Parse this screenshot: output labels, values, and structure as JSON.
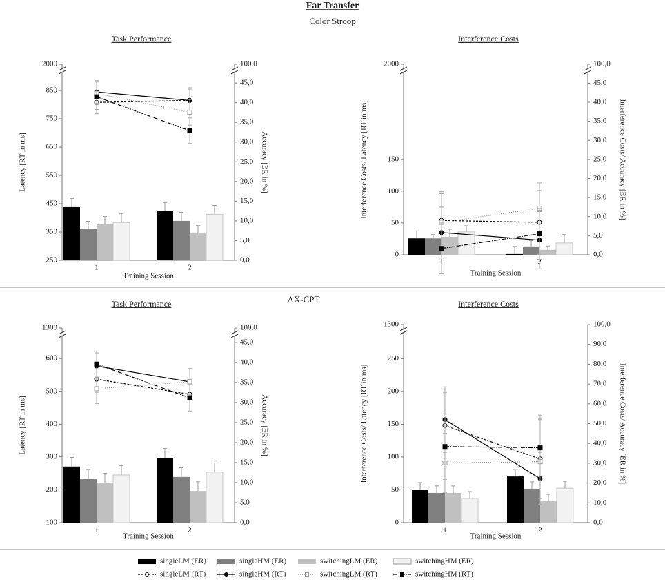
{
  "title": "Far Transfer",
  "sections": [
    "Color Stroop",
    "AX-CPT"
  ],
  "chart_data": [
    {
      "type": "bar_line",
      "title": "Task Performance",
      "xlabel": "Training Session",
      "ylabel": "Latency  [RT in ms]",
      "y2label": "Accuracy [ER in %]",
      "categories": [
        "1",
        "2"
      ],
      "ylim": [
        250,
        899
      ],
      "yticks": [
        250,
        350,
        450,
        550,
        650,
        750,
        850
      ],
      "ybreak_tick": 2000,
      "y2lim": [
        0,
        46.6
      ],
      "y2ticks": [
        {
          "value": 0,
          "label": "0,0"
        },
        {
          "value": 5,
          "label": "5,0"
        },
        {
          "value": 10,
          "label": "10,0"
        },
        {
          "value": 15,
          "label": "15,0"
        },
        {
          "value": 20,
          "label": "20,0"
        },
        {
          "value": 25,
          "label": "25,0"
        },
        {
          "value": 30,
          "label": "30,0"
        },
        {
          "value": 35,
          "label": "35,0"
        },
        {
          "value": 40,
          "label": "40,0"
        },
        {
          "value": 45,
          "label": "45,0"
        }
      ],
      "y2break_tick": {
        "value": 100,
        "label": "100,0"
      },
      "series": [
        {
          "name": "singleLM (ER)",
          "type": "bar",
          "axis": "y2",
          "color": "#000000",
          "values": [
            13.5,
            12.6
          ],
          "errors": [
            2.2,
            2.0
          ]
        },
        {
          "name": "singleHM (ER)",
          "type": "bar",
          "axis": "y2",
          "color": "#808080",
          "values": [
            7.9,
            10.0
          ],
          "errors": [
            2.0,
            2.2
          ]
        },
        {
          "name": "switchingLM (ER)",
          "type": "bar",
          "axis": "y2",
          "color": "#c0c0c0",
          "values": [
            9.1,
            6.8
          ],
          "errors": [
            2.0,
            2.0
          ]
        },
        {
          "name": "switchingHM (ER)",
          "type": "bar",
          "axis": "y2",
          "color": "#f2f2f2",
          "values": [
            9.6,
            11.7
          ],
          "errors": [
            2.2,
            2.2
          ]
        },
        {
          "name": "singleLM (RT)",
          "type": "line",
          "axis": "y",
          "color": "#000000",
          "dash": "3,2",
          "marker": "circle",
          "marker_fill": "#ffffff",
          "values": [
            808,
            815
          ],
          "errors": [
            40,
            40
          ]
        },
        {
          "name": "singleHM (RT)",
          "type": "line",
          "axis": "y",
          "color": "#000000",
          "dash": "none",
          "marker": "circle",
          "marker_fill": "#000000",
          "values": [
            845,
            815
          ],
          "errors": [
            40,
            45
          ]
        },
        {
          "name": "switchingLM (RT)",
          "type": "line",
          "axis": "y",
          "color": "#999999",
          "dash": "1,2",
          "marker": "square",
          "marker_fill": "#ffffff",
          "values": [
            840,
            773
          ],
          "errors": [
            40,
            45
          ]
        },
        {
          "name": "switchingHM (RT)",
          "type": "line",
          "axis": "y",
          "color": "#000000",
          "dash": "6,2,1,2",
          "marker": "square",
          "marker_fill": "#000000",
          "values": [
            828,
            708
          ],
          "errors": [
            45,
            45
          ]
        }
      ]
    },
    {
      "type": "bar_line",
      "title": "Interference Costs",
      "xlabel": "Training Session",
      "ylabel": "Interference Costs/ Latency  [RT in ms]",
      "y2label": "Interference Costs/ Accuracy [ER in %]",
      "categories": [
        "1",
        "2"
      ],
      "ylim": [
        0,
        280
      ],
      "yticks": [
        0,
        50,
        100,
        150
      ],
      "ybreak_tick": 2000,
      "y2lim": [
        0,
        46.7
      ],
      "y2ticks": [
        {
          "value": 0,
          "label": "0,0"
        },
        {
          "value": 5,
          "label": "5,0"
        },
        {
          "value": 10,
          "label": "10,0"
        },
        {
          "value": 15,
          "label": "15,0"
        },
        {
          "value": 20,
          "label": "20,0"
        },
        {
          "value": 25,
          "label": "25,0"
        },
        {
          "value": 30,
          "label": "30,0"
        },
        {
          "value": 35,
          "label": "35,0"
        },
        {
          "value": 40,
          "label": "40,0"
        },
        {
          "value": 45,
          "label": "45,0"
        }
      ],
      "y2break_tick": {
        "value": 100,
        "label": "100,0"
      },
      "series": [
        {
          "name": "singleLM (ER)",
          "type": "bar",
          "axis": "y2",
          "color": "#000000",
          "values": [
            4.3,
            0.2
          ],
          "errors": [
            2.0,
            2.0
          ]
        },
        {
          "name": "singleHM (ER)",
          "type": "bar",
          "axis": "y2",
          "color": "#808080",
          "values": [
            4.3,
            2.2
          ],
          "errors": [
            1.0,
            1.5
          ]
        },
        {
          "name": "switchingLM (ER)",
          "type": "bar",
          "axis": "y2",
          "color": "#c0c0c0",
          "values": [
            4.7,
            1.3
          ],
          "errors": [
            2.0,
            1.0
          ]
        },
        {
          "name": "switchingHM (ER)",
          "type": "bar",
          "axis": "y2",
          "color": "#f2f2f2",
          "values": [
            6.0,
            3.1
          ],
          "errors": [
            1.6,
            2.2
          ]
        },
        {
          "name": "singleLM (RT)",
          "type": "line",
          "axis": "y",
          "color": "#000000",
          "dash": "3,2",
          "marker": "circle",
          "marker_fill": "#ffffff",
          "values": [
            54,
            51
          ],
          "errors": [
            45,
            50
          ]
        },
        {
          "name": "singleHM (RT)",
          "type": "line",
          "axis": "y",
          "color": "#000000",
          "dash": "none",
          "marker": "circle",
          "marker_fill": "#000000",
          "values": [
            35,
            23
          ],
          "errors": [
            40,
            45
          ]
        },
        {
          "name": "switchingLM (RT)",
          "type": "line",
          "axis": "y",
          "color": "#999999",
          "dash": "1,2",
          "marker": "square",
          "marker_fill": "#ffffff",
          "values": [
            51,
            73
          ],
          "errors": [
            45,
            40
          ]
        },
        {
          "name": "switchingHM (RT)",
          "type": "line",
          "axis": "y",
          "color": "#000000",
          "dash": "6,2,1,2",
          "marker": "square",
          "marker_fill": "#000000",
          "values": [
            10,
            33
          ],
          "errors": [
            40,
            40
          ]
        }
      ]
    },
    {
      "type": "bar_line",
      "title": "Task Performance",
      "xlabel": "Training Session",
      "ylabel": "Latency [RT in ms]",
      "y2label": "Accuracy [ER in %]",
      "categories": [
        "1",
        "2"
      ],
      "ylim": [
        100,
        655
      ],
      "yticks": [
        100,
        200,
        300,
        400,
        500,
        600
      ],
      "ybreak_tick": 1300,
      "y2lim": [
        0,
        45.5
      ],
      "y2ticks": [
        {
          "value": 0,
          "label": "0,0"
        },
        {
          "value": 5,
          "label": "5,0"
        },
        {
          "value": 10,
          "label": "10,0"
        },
        {
          "value": 15,
          "label": "15,0"
        },
        {
          "value": 20,
          "label": "20,0"
        },
        {
          "value": 25,
          "label": "25,0"
        },
        {
          "value": 30,
          "label": "30,0"
        },
        {
          "value": 35,
          "label": "35,0"
        },
        {
          "value": 40,
          "label": "40,0"
        },
        {
          "value": 45,
          "label": "45,0"
        }
      ],
      "y2break_tick": {
        "value": 100,
        "label": "100,0"
      },
      "series": [
        {
          "name": "singleLM (ER)",
          "type": "bar",
          "axis": "y2",
          "color": "#000000",
          "values": [
            14.0,
            16.2
          ],
          "errors": [
            2.3,
            2.3
          ]
        },
        {
          "name": "singleHM (ER)",
          "type": "bar",
          "axis": "y2",
          "color": "#808080",
          "values": [
            11.0,
            11.4
          ],
          "errors": [
            2.3,
            2.3
          ]
        },
        {
          "name": "switchingLM (ER)",
          "type": "bar",
          "axis": "y2",
          "color": "#c0c0c0",
          "values": [
            10.0,
            7.9
          ],
          "errors": [
            2.3,
            2.3
          ]
        },
        {
          "name": "switchingHM (ER)",
          "type": "bar",
          "axis": "y2",
          "color": "#f2f2f2",
          "values": [
            11.9,
            12.6
          ],
          "errors": [
            2.3,
            2.3
          ]
        },
        {
          "name": "singleLM (RT)",
          "type": "line",
          "axis": "y",
          "color": "#000000",
          "dash": "3,2",
          "marker": "circle",
          "marker_fill": "#ffffff",
          "values": [
            537,
            491
          ],
          "errors": [
            40,
            45
          ]
        },
        {
          "name": "singleHM (RT)",
          "type": "line",
          "axis": "y",
          "color": "#000000",
          "dash": "none",
          "marker": "circle",
          "marker_fill": "#000000",
          "values": [
            577,
            529
          ],
          "errors": [
            40,
            40
          ]
        },
        {
          "name": "switchingLM (RT)",
          "type": "line",
          "axis": "y",
          "color": "#999999",
          "dash": "1,2",
          "marker": "square",
          "marker_fill": "#ffffff",
          "values": [
            508,
            529
          ],
          "errors": [
            45,
            40
          ]
        },
        {
          "name": "switchingHM (RT)",
          "type": "line",
          "axis": "y",
          "color": "#000000",
          "dash": "6,2,1,2",
          "marker": "square",
          "marker_fill": "#000000",
          "values": [
            583,
            480
          ],
          "errors": [
            40,
            40
          ]
        }
      ]
    },
    {
      "type": "bar_line",
      "title": "Interference Costs",
      "xlabel": "Training Session",
      "ylabel": "Interference Costs/ Latency  [RT in ms]",
      "y2label": "Interference Costs/ Accuracy [ER in %]",
      "categories": [
        "1",
        "2"
      ],
      "ylim": [
        0,
        283
      ],
      "yticks": [
        0,
        50,
        100,
        150,
        200,
        250
      ],
      "ybreak_tick": 1300,
      "y2lim": [
        0,
        100
      ],
      "y2ticks": [
        {
          "value": 0,
          "label": "0,0"
        },
        {
          "value": 10,
          "label": "10,0"
        },
        {
          "value": 20,
          "label": "20,0"
        },
        {
          "value": 30,
          "label": "30,0"
        },
        {
          "value": 40,
          "label": "40,0"
        },
        {
          "value": 50,
          "label": "50,0"
        },
        {
          "value": 60,
          "label": "60,0"
        },
        {
          "value": 70,
          "label": "70,0"
        },
        {
          "value": 80,
          "label": "80,0"
        },
        {
          "value": 90,
          "label": "90,0"
        },
        {
          "value": 100,
          "label": "100,0"
        }
      ],
      "series": [
        {
          "name": "singleLM (ER)",
          "type": "bar",
          "axis": "y2",
          "color": "#000000",
          "values": [
            16.7,
            23.3
          ],
          "errors": [
            3.5,
            3.5
          ]
        },
        {
          "name": "singleHM (ER)",
          "type": "bar",
          "axis": "y2",
          "color": "#808080",
          "values": [
            15.0,
            17.1
          ],
          "errors": [
            3.5,
            3.5
          ]
        },
        {
          "name": "switchingLM (ER)",
          "type": "bar",
          "axis": "y2",
          "color": "#c0c0c0",
          "values": [
            15.0,
            10.8
          ],
          "errors": [
            3.5,
            3.5
          ]
        },
        {
          "name": "switchingHM (ER)",
          "type": "bar",
          "axis": "y2",
          "color": "#f2f2f2",
          "values": [
            12.2,
            17.4
          ],
          "errors": [
            3.5,
            3.5
          ]
        },
        {
          "name": "singleLM (RT)",
          "type": "line",
          "axis": "y",
          "color": "#000000",
          "dash": "3,2",
          "marker": "circle",
          "marker_fill": "#ffffff",
          "values": [
            148,
            97
          ],
          "errors": [
            50,
            60
          ]
        },
        {
          "name": "singleHM (RT)",
          "type": "line",
          "axis": "y",
          "color": "#000000",
          "dash": "none",
          "marker": "circle",
          "marker_fill": "#000000",
          "values": [
            157,
            67
          ],
          "errors": [
            50,
            40
          ]
        },
        {
          "name": "switchingLM (RT)",
          "type": "line",
          "axis": "y",
          "color": "#999999",
          "dash": "1,2",
          "marker": "square",
          "marker_fill": "#ffffff",
          "values": [
            91,
            93
          ],
          "errors": [
            45,
            65
          ]
        },
        {
          "name": "switchingHM (RT)",
          "type": "line",
          "axis": "y",
          "color": "#000000",
          "dash": "6,2,1,2",
          "marker": "square",
          "marker_fill": "#000000",
          "values": [
            116,
            114
          ],
          "errors": [
            50,
            50
          ]
        }
      ]
    }
  ]
}
